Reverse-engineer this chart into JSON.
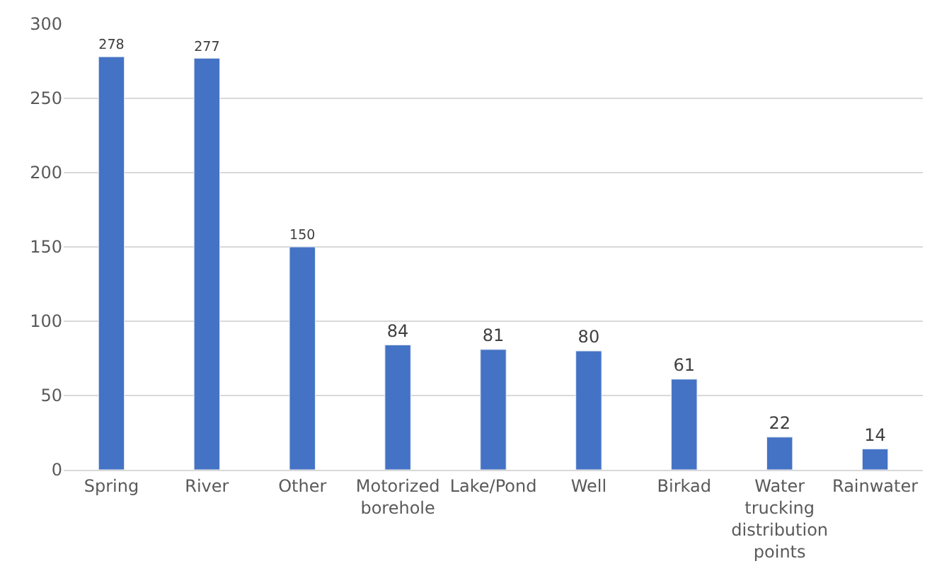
{
  "chart_data": {
    "type": "bar",
    "categories": [
      "Spring",
      "River",
      "Other",
      "Motorized borehole",
      "Lake/Pond",
      "Well",
      "Birkad",
      "Water trucking distribution points",
      "Rainwater"
    ],
    "values": [
      278,
      277,
      150,
      84,
      81,
      80,
      61,
      22,
      14
    ],
    "color": "#4472c4",
    "ylim": [
      0,
      300
    ],
    "yticks": [
      0,
      50,
      100,
      150,
      200,
      250,
      300
    ],
    "grid": "y",
    "data_labels": true
  }
}
